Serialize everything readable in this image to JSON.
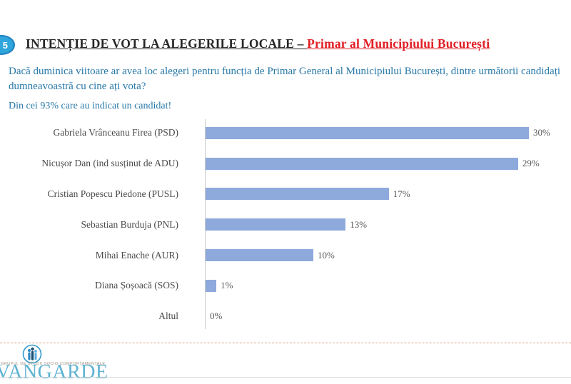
{
  "slide": {
    "number": "5",
    "title_main": "INTENȚIE DE VOT LA ALEGERILE LOCALE – ",
    "title_highlight": "Primar al Municipiului București",
    "question_line1": "Dacă duminica viitoare ar avea loc alegeri pentru funcția de Primar General al Municipiului București, dintre următorii candidați",
    "question_line2": "dumneavoastră cu cine ați vota?",
    "note": "Din cei 93% care au indicat un candidat!"
  },
  "chart_data": {
    "type": "bar",
    "orientation": "horizontal",
    "title": "",
    "xlabel": "",
    "ylabel": "",
    "categories": [
      "Gabriela Vrânceanu Firea (PSD)",
      "Nicușor Dan (ind susținut de ADU)",
      "Cristian Popescu Piedone (PUSL)",
      "Sebastian Burduja (PNL)",
      "Mihai Enache (AUR)",
      "Diana Șoșoacă (SOS)",
      "Altul"
    ],
    "values": [
      30,
      29,
      17,
      13,
      10,
      1,
      0
    ],
    "value_labels": [
      "30%",
      "29%",
      "17%",
      "13%",
      "10%",
      "1%",
      "0%"
    ],
    "unit": "%",
    "xlim": [
      0,
      32
    ],
    "grid": false,
    "legend": false,
    "bar_color": "#8EA9DB"
  },
  "footer": {
    "logo_text": "AVANGARDE",
    "logo_tagline": "GRUPUL DE STUDII SOCIO-COMPORTAMENTALE"
  },
  "colors": {
    "title_dark": "#262626",
    "title_red": "#E01E25",
    "text_blue": "#2878A8",
    "bar_blue": "#8EA9DB",
    "badge_fill": "#2FA5DB",
    "badge_border": "#1D7DBE",
    "logo_blue": "#5FB3D2",
    "tagline_color": "#A09384",
    "dash_line": "#D9A482"
  }
}
